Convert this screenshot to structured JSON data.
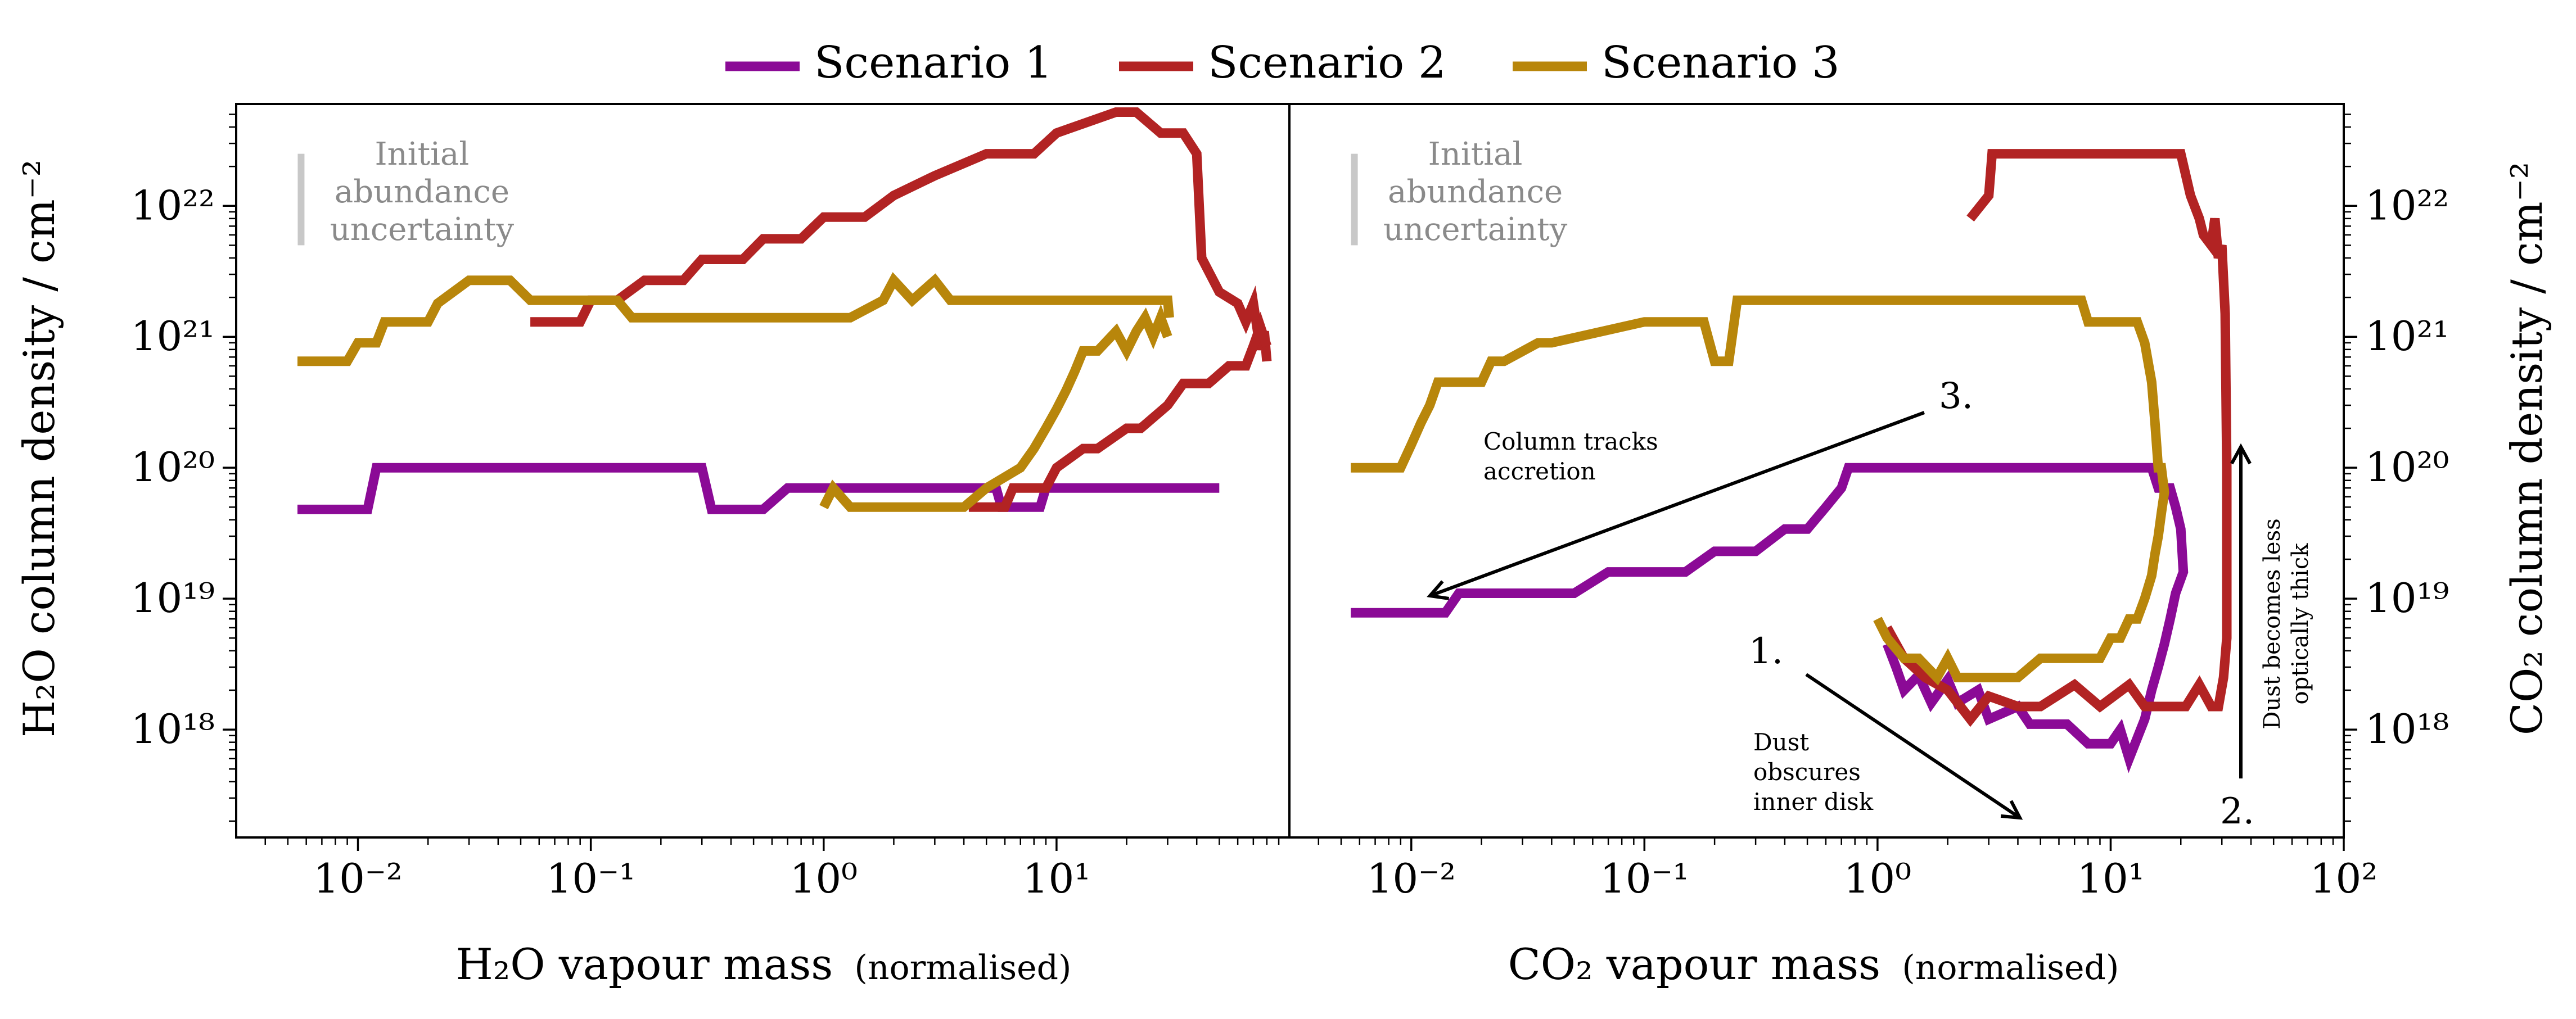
{
  "chart_data": {
    "type": "line",
    "colors": {
      "Scenario 1": "#8b0a96",
      "Scenario 2": "#b22323",
      "Scenario 3": "#b8860b",
      "uncertainty": "#c8c8c8"
    },
    "legend": [
      {
        "name": "Scenario 1",
        "color": "#8b0a96"
      },
      {
        "name": "Scenario 2",
        "color": "#b22323"
      },
      {
        "name": "Scenario 3",
        "color": "#b8860b"
      }
    ],
    "panels": [
      {
        "id": "h2o",
        "xlabel": "H₂O vapour mass",
        "xlabel_suffix": "(normalised)",
        "ylabel": "H₂O column density / cm⁻²",
        "xscale": "log",
        "yscale": "log",
        "xlim": [
          0.003,
          100
        ],
        "ylim": [
          1.5e+17,
          6e+22
        ],
        "xticks": [
          {
            "v": 0.01,
            "label": "10⁻²"
          },
          {
            "v": 0.1,
            "label": "10⁻¹"
          },
          {
            "v": 1,
            "label": "10⁰"
          },
          {
            "v": 10,
            "label": "10¹"
          }
        ],
        "yticks": [
          {
            "v": 1e+18,
            "label": "10¹⁸"
          },
          {
            "v": 1e+19,
            "label": "10¹⁹"
          },
          {
            "v": 1e+20,
            "label": "10²⁰"
          },
          {
            "v": 1e+21,
            "label": "10²¹"
          },
          {
            "v": 1e+22,
            "label": "10²²"
          }
        ],
        "uncertainty_label": [
          "Initial",
          "abundance",
          "uncertainty"
        ],
        "uncertainty_bar": {
          "x": 0.0057,
          "y_range": [
            5e+21,
            2.5e+22
          ]
        },
        "series": [
          {
            "name": "Scenario 1",
            "x": [
              0.0055,
              0.011,
              0.012,
              0.3,
              0.33,
              0.55,
              0.7,
              1.0,
              5.5,
              5.8,
              8.5,
              9.0,
              50
            ],
            "y": [
              4.8e+19,
              4.8e+19,
              1e+20,
              1e+20,
              4.8e+19,
              4.8e+19,
              7e+19,
              7e+19,
              7e+19,
              5e+19,
              5e+19,
              7e+19,
              7e+19
            ]
          },
          {
            "name": "Scenario 2",
            "x": [
              0.055,
              0.09,
              0.1,
              0.13,
              0.17,
              0.25,
              0.3,
              0.45,
              0.55,
              0.8,
              1.0,
              1.5,
              2.0,
              3.0,
              5.0,
              8.0,
              10.0,
              18.0,
              22.0,
              28.0,
              35.0,
              40.0,
              42.0,
              50.0,
              60.0,
              65.0,
              70.0,
              75.0,
              78.0,
              80.0
            ],
            "y": [
              1.3e+21,
              1.3e+21,
              1.9e+21,
              1.9e+21,
              2.7e+21,
              2.7e+21,
              3.9e+21,
              3.9e+21,
              5.6e+21,
              5.6e+21,
              8.2e+21,
              8.2e+21,
              1.2e+22,
              1.7e+22,
              2.5e+22,
              2.5e+22,
              3.6e+22,
              5.2e+22,
              5.2e+22,
              3.6e+22,
              3.6e+22,
              2.5e+22,
              4e+21,
              2.2e+21,
              1.8e+21,
              1.3e+21,
              1.8e+21,
              8e+20,
              1.1e+21,
              6.5e+20
            ],
            "x2": [
              4.2,
              6.0,
              6.5,
              9.0,
              10.0,
              13.0,
              15.0,
              20.0,
              23.0,
              30.0,
              35.0,
              45.0,
              55.0,
              65.0,
              70.0,
              75.0,
              80.0
            ],
            "y2": [
              5e+19,
              5e+19,
              7e+19,
              7e+19,
              1e+20,
              1.4e+20,
              1.4e+20,
              2e+20,
              2e+20,
              3e+20,
              4.4e+20,
              4.4e+20,
              6e+20,
              6e+20,
              8.5e+20,
              1.2e+21,
              8.5e+20
            ]
          },
          {
            "name": "Scenario 3",
            "x": [
              0.0055,
              0.009,
              0.01,
              0.012,
              0.013,
              0.02,
              0.022,
              0.03,
              0.045,
              0.055,
              0.13,
              0.15,
              1.3,
              1.8,
              2.0,
              2.4,
              3.0,
              3.5,
              4.0,
              30.0,
              30.5
            ],
            "y": [
              6.5e+20,
              6.5e+20,
              9e+20,
              9e+20,
              1.3e+21,
              1.3e+21,
              1.8e+21,
              2.7e+21,
              2.7e+21,
              1.9e+21,
              1.9e+21,
              1.4e+21,
              1.4e+21,
              1.9e+21,
              2.7e+21,
              1.9e+21,
              2.7e+21,
              1.9e+21,
              1.9e+21,
              1.9e+21,
              1.4e+21
            ],
            "x2": [
              1.0,
              1.1,
              1.3,
              1.5,
              4.0,
              5.0,
              7.0,
              8.0,
              9.0,
              10.0,
              11.0,
              12.0,
              13.0,
              15.0,
              18.0,
              20.0,
              22.0,
              24.0,
              26.0,
              28.0,
              30.0
            ],
            "y2": [
              5e+19,
              7e+19,
              5e+19,
              5e+19,
              5e+19,
              7e+19,
              1e+20,
              1.4e+20,
              2e+20,
              2.8e+20,
              3.9e+20,
              5.5e+20,
              7.8e+20,
              7.8e+20,
              1.1e+21,
              7.8e+20,
              1.1e+21,
              1.4e+21,
              1e+21,
              1.4e+21,
              1e+21
            ]
          }
        ]
      },
      {
        "id": "co2",
        "xlabel": "CO₂ vapour mass",
        "xlabel_suffix": "(normalised)",
        "ylabel": "CO₂ column density / cm⁻²",
        "xscale": "log",
        "yscale": "log",
        "xlim": [
          0.003,
          100
        ],
        "ylim": [
          1.5e+17,
          6e+22
        ],
        "xticks": [
          {
            "v": 0.01,
            "label": "10⁻²"
          },
          {
            "v": 0.1,
            "label": "10⁻¹"
          },
          {
            "v": 1,
            "label": "10⁰"
          },
          {
            "v": 10,
            "label": "10¹"
          },
          {
            "v": 100,
            "label": "10²"
          }
        ],
        "yticks": [
          {
            "v": 1e+18,
            "label": "10¹⁸"
          },
          {
            "v": 1e+19,
            "label": "10¹⁹"
          },
          {
            "v": 1e+20,
            "label": "10²⁰"
          },
          {
            "v": 1e+21,
            "label": "10²¹"
          },
          {
            "v": 1e+22,
            "label": "10²²"
          }
        ],
        "uncertainty_label": [
          "Initial",
          "abundance",
          "uncertainty"
        ],
        "uncertainty_bar": {
          "x": 0.0057,
          "y_range": [
            5e+21,
            2.5e+22
          ]
        },
        "series": [
          {
            "name": "Scenario 1",
            "x": [
              0.0055,
              0.014,
              0.016,
              0.05,
              0.07,
              0.15,
              0.2,
              0.3,
              0.4,
              0.5,
              0.6,
              0.7,
              0.75,
              15.0,
              16.0,
              18.0,
              19.0,
              20.0,
              20.5,
              19.0,
              18.0,
              17.0,
              16.0,
              15.0,
              14.0,
              12.0,
              11.0,
              10.0,
              8.0,
              6.5,
              4.5,
              4.0,
              3.0,
              2.7,
              2.2,
              2.0,
              1.7,
              1.5,
              1.3,
              1.2,
              1.1
            ],
            "y": [
              7.8e+18,
              7.8e+18,
              1.1e+19,
              1.1e+19,
              1.6e+19,
              1.6e+19,
              2.3e+19,
              2.3e+19,
              3.4e+19,
              3.4e+19,
              5e+19,
              7e+19,
              1e+20,
              1e+20,
              7e+19,
              7e+19,
              5e+19,
              3.4e+19,
              1.6e+19,
              1.1e+19,
              7e+18,
              4.5e+18,
              3e+18,
              2e+18,
              1.2e+18,
              6e+17,
              1e+18,
              7.8e+17,
              7.8e+17,
              1.1e+18,
              1.1e+18,
              1.5e+18,
              1.2e+18,
              2e+18,
              1.6e+18,
              2.4e+18,
              1.6e+18,
              2.6e+18,
              2e+18,
              3e+18,
              4.5e+18
            ]
          },
          {
            "name": "Scenario 2",
            "x": [
              2.5,
              3.0,
              3.1,
              20.0,
              22.0,
              24.0,
              25.0,
              27.0,
              28.0,
              29.0,
              30.0,
              31.0,
              31.5,
              31.5,
              30.5,
              29.0,
              27.0,
              24.0,
              21.0,
              18.0,
              14.0,
              12.0,
              9.0,
              7.0,
              5.0,
              4.0,
              3.0,
              2.5,
              2.0,
              1.6,
              1.3,
              1.1
            ],
            "y": [
              8e+21,
              1.2e+22,
              2.5e+22,
              2.5e+22,
              1.2e+22,
              8e+21,
              6e+21,
              5e+21,
              8e+21,
              4e+21,
              5e+21,
              1.5e+21,
              1e+20,
              5e+18,
              2.5e+18,
              1.5e+18,
              1.5e+18,
              2.2e+18,
              1.5e+18,
              1.5e+18,
              1.5e+18,
              2.2e+18,
              1.5e+18,
              2.2e+18,
              1.5e+18,
              1.5e+18,
              1.8e+18,
              1.2e+18,
              2e+18,
              2.5e+18,
              3.5e+18,
              6e+18
            ]
          },
          {
            "name": "Scenario 3",
            "x": [
              0.0055,
              0.009,
              0.01,
              0.011,
              0.012,
              0.013,
              0.02,
              0.022,
              0.025,
              0.035,
              0.04,
              0.1,
              0.11,
              0.18,
              0.2,
              0.23,
              0.25,
              7.5,
              8.0,
              13.0,
              14.0,
              15.0,
              15.5,
              16.0,
              16.5,
              17.0,
              16.5,
              16.0,
              15.5,
              15.0,
              14.0,
              13.0,
              12.0,
              11.0,
              10.0,
              9.0,
              8.0,
              5.0,
              4.0,
              3.8,
              2.2,
              2.0,
              1.8,
              1.5,
              1.3,
              1.1,
              1.0
            ],
            "y": [
              1e+20,
              1e+20,
              1.5e+20,
              2.2e+20,
              3e+20,
              4.5e+20,
              4.5e+20,
              6.5e+20,
              6.5e+20,
              9e+20,
              9e+20,
              1.3e+21,
              1.3e+21,
              1.3e+21,
              6.5e+20,
              6.5e+20,
              1.9e+21,
              1.9e+21,
              1.3e+21,
              1.3e+21,
              9e+20,
              4.5e+20,
              2.2e+20,
              1e+20,
              1e+20,
              6.5e+19,
              4.5e+19,
              3e+19,
              2.2e+19,
              1.5e+19,
              1e+19,
              7e+18,
              7e+18,
              5e+18,
              5e+18,
              3.5e+18,
              3.5e+18,
              3.5e+18,
              2.5e+18,
              2.5e+18,
              2.5e+18,
              3.5e+18,
              2.5e+18,
              3.5e+18,
              3.5e+18,
              5e+18,
              7e+18
            ]
          }
        ],
        "annotations": {
          "one": {
            "label": "1.",
            "text": [
              "Dust",
              "obscures",
              "inner disk"
            ]
          },
          "two": {
            "label": "2.",
            "text": [
              "Dust becomes less",
              "optically thick"
            ]
          },
          "three": {
            "label": "3.",
            "text": [
              "Column tracks",
              "accretion"
            ]
          }
        }
      }
    ]
  }
}
